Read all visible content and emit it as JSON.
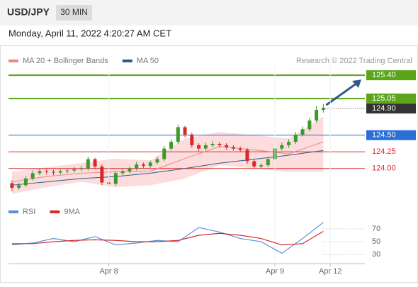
{
  "header": {
    "symbol": "USD/JPY",
    "interval": "30 MIN",
    "timestamp": "Monday, April 11, 2022 4:20:27 AM CET",
    "credit": "Research © 2022 Trading Central"
  },
  "chart_data": [
    {
      "type": "candlestick",
      "xlim": [
        -0.5,
        51
      ],
      "ylim": [
        123.53,
        125.54
      ],
      "up_color": "#3a9a2a",
      "down_color": "#d62a2a",
      "open": [
        123.78,
        123.71,
        123.75,
        123.85,
        123.93,
        123.96,
        123.95,
        123.94,
        123.96,
        123.97,
        123.99,
        124.0,
        124.14,
        124.03,
        123.79,
        123.77,
        123.93,
        123.96,
        124.0,
        124.06,
        124.04,
        124.09,
        124.14,
        124.3,
        124.4,
        124.62,
        124.51,
        124.35,
        124.3,
        124.35,
        124.37,
        124.35,
        124.32,
        124.3,
        124.28,
        124.11,
        124.03,
        124.05,
        124.14,
        124.3,
        124.35,
        124.4,
        124.51,
        124.59,
        124.72,
        124.88
      ],
      "high": [
        123.82,
        123.79,
        123.89,
        123.97,
        124.0,
        123.99,
        123.98,
        124.0,
        124.01,
        124.02,
        124.04,
        124.18,
        124.16,
        124.06,
        123.85,
        123.96,
        124.0,
        124.03,
        124.1,
        124.09,
        124.12,
        124.18,
        124.34,
        124.44,
        124.66,
        124.64,
        124.54,
        124.38,
        124.39,
        124.41,
        124.4,
        124.38,
        124.35,
        124.33,
        124.31,
        124.14,
        124.08,
        124.17,
        124.33,
        124.39,
        124.44,
        124.55,
        124.63,
        124.76,
        124.94,
        124.97
      ],
      "low": [
        123.66,
        123.68,
        123.72,
        123.82,
        123.9,
        123.91,
        123.9,
        123.91,
        123.93,
        123.94,
        123.96,
        123.97,
        123.99,
        123.75,
        123.72,
        123.74,
        123.9,
        123.93,
        123.97,
        124.01,
        124.01,
        124.06,
        124.11,
        124.27,
        124.37,
        124.47,
        124.31,
        124.26,
        124.27,
        124.32,
        124.31,
        124.28,
        124.27,
        124.25,
        124.07,
        124.0,
        124.0,
        124.02,
        124.11,
        124.27,
        124.31,
        124.37,
        124.48,
        124.56,
        124.69,
        124.84
      ],
      "close": [
        123.71,
        123.75,
        123.85,
        123.93,
        123.96,
        123.95,
        123.94,
        123.96,
        123.97,
        123.99,
        124.0,
        124.14,
        124.03,
        123.79,
        123.77,
        123.93,
        123.96,
        124.0,
        124.06,
        124.04,
        124.09,
        124.14,
        124.3,
        124.4,
        124.62,
        124.51,
        124.35,
        124.3,
        124.35,
        124.37,
        124.35,
        124.32,
        124.3,
        124.28,
        124.11,
        124.03,
        124.05,
        124.14,
        124.3,
        124.35,
        124.4,
        124.51,
        124.59,
        124.72,
        124.88,
        124.91
      ],
      "line_x": [
        0,
        5,
        10,
        15,
        20,
        25,
        30,
        35,
        40,
        45
      ],
      "bb_upper": [
        123.95,
        124.02,
        124.08,
        124.15,
        124.12,
        124.45,
        124.55,
        124.5,
        124.45,
        124.78
      ],
      "bb_lower": [
        123.62,
        123.72,
        123.8,
        123.72,
        123.75,
        123.85,
        124.05,
        124.0,
        123.95,
        123.95
      ],
      "band_color": "#fcdcdc",
      "series": [
        {
          "name": "MA 20 + Bollinger Bands",
          "color": "#e88a8a",
          "values": [
            123.8,
            123.88,
            123.93,
            123.95,
            123.96,
            124.15,
            124.33,
            124.28,
            124.22,
            124.4
          ]
        },
        {
          "name": "MA 50",
          "color": "#2f5b8c",
          "values": [
            123.75,
            123.8,
            123.85,
            123.88,
            123.93,
            124.0,
            124.08,
            124.14,
            124.2,
            124.27
          ]
        }
      ],
      "levels": [
        {
          "value": 125.4,
          "label": "125.40",
          "color": "#5aa51a",
          "style": "box"
        },
        {
          "value": 125.05,
          "label": "125.05",
          "color": "#5aa51a",
          "style": "box"
        },
        {
          "value": 124.9,
          "label": "124.90",
          "color": "#333333",
          "style": "current"
        },
        {
          "value": 124.5,
          "label": "124.50",
          "color": "#2a6fd6",
          "style": "box"
        },
        {
          "value": 124.25,
          "label": "124.25",
          "color": "#d62a2a",
          "style": "text"
        },
        {
          "value": 124,
          "label": "124.00",
          "color": "#d62a2a",
          "style": "text"
        }
      ],
      "target": 125.4
    },
    {
      "type": "line",
      "xlim": [
        -0.5,
        51
      ],
      "ylim": [
        16,
        82
      ],
      "yticks": [
        70,
        50,
        30
      ],
      "x": [
        0,
        3,
        6,
        9,
        12,
        15,
        18,
        21,
        24,
        27,
        30,
        33,
        36,
        39,
        42,
        45
      ],
      "series": [
        {
          "name": "RSI",
          "color": "#5b8fd9",
          "values": [
            45,
            48,
            55,
            50,
            58,
            45,
            48,
            52,
            50,
            72,
            65,
            55,
            50,
            32,
            55,
            80
          ]
        },
        {
          "name": "9MA",
          "color": "#d62a2a",
          "values": [
            47,
            47,
            50,
            52,
            53,
            52,
            50,
            50,
            52,
            60,
            63,
            60,
            55,
            45,
            47,
            66
          ]
        }
      ],
      "xticks": [
        {
          "value": 14,
          "label": "Apr 8"
        },
        {
          "value": 38,
          "label": "Apr 9"
        },
        {
          "value": 46,
          "label": "Apr 12"
        }
      ]
    }
  ]
}
